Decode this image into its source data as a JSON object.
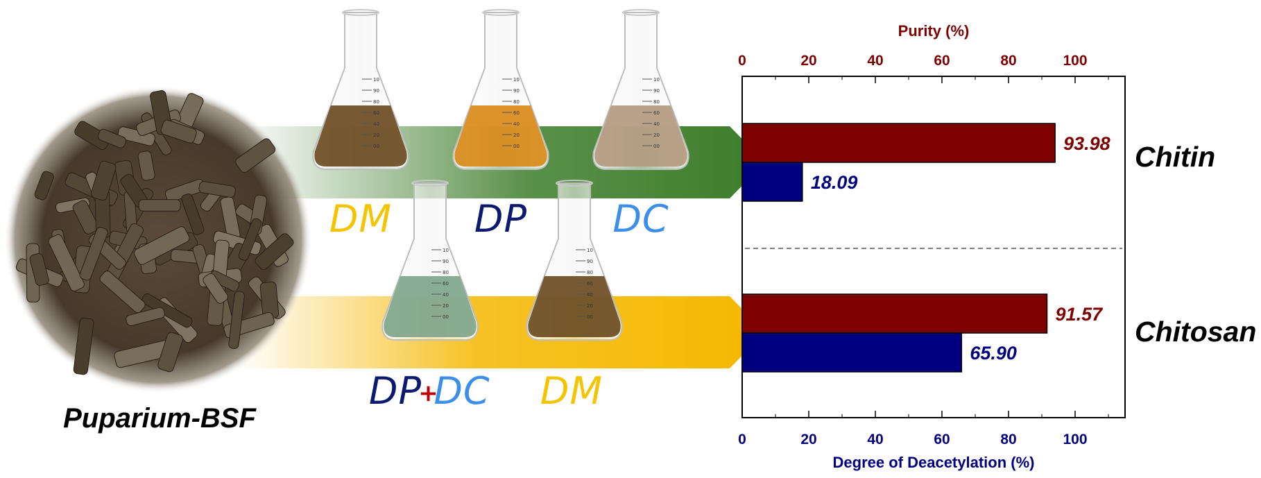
{
  "colors": {
    "purity": "#7f0000",
    "deacetylation": "#000080",
    "arrow_chitin": "#3d7d2a",
    "arrow_chitosan": "#f5b800",
    "dm": "#f5c400",
    "dp": "#0b1a6e",
    "dc": "#3b8fe8",
    "plus": "#c00000"
  },
  "source": {
    "label": "Puparium-BSF"
  },
  "routes": [
    {
      "product": "Chitin",
      "steps": [
        {
          "text": "DM",
          "color": "#f5c400",
          "liquid": "#6b4c22"
        },
        {
          "text": "DP",
          "color": "#0b1a6e",
          "liquid": "#d98a1a"
        },
        {
          "text": "DC",
          "color": "#3b8fe8",
          "liquid": "#b49a80"
        }
      ]
    },
    {
      "product": "Chitosan",
      "steps": [
        {
          "text": "DP",
          "color": "#0b1a6e",
          "liquid": "#7fa58c"
        },
        {
          "text": "+",
          "color": "#c00000"
        },
        {
          "text": "DC",
          "color": "#3b8fe8"
        },
        {
          "text": "DM",
          "color": "#f5c400",
          "liquid": "#6b4c22"
        }
      ]
    }
  ],
  "flask_graduations": [
    "10",
    "90",
    "80",
    "60",
    "40",
    "20",
    "00"
  ],
  "chart_data": {
    "type": "bar",
    "orientation": "horizontal",
    "categories": [
      "Chitin",
      "Chitosan"
    ],
    "series": [
      {
        "name": "Purity (%)",
        "values": [
          93.98,
          91.57
        ],
        "labels": [
          "93.98",
          "91.57"
        ],
        "color": "#7f0000",
        "axis": "top"
      },
      {
        "name": "Degree of Deacetylation (%)",
        "values": [
          18.09,
          65.9
        ],
        "labels": [
          "18.09",
          "65.90"
        ],
        "color": "#000080",
        "axis": "bottom"
      }
    ],
    "top_axis": {
      "label": "Purity (%)",
      "range": [
        0,
        115
      ],
      "ticks": [
        "0",
        "20",
        "40",
        "60",
        "80",
        "100"
      ]
    },
    "bottom_axis": {
      "label": "Degree of Deacetylation (%)",
      "range": [
        0,
        115
      ],
      "ticks": [
        "0",
        "20",
        "40",
        "60",
        "80",
        "100"
      ]
    },
    "separator": "dashed"
  }
}
